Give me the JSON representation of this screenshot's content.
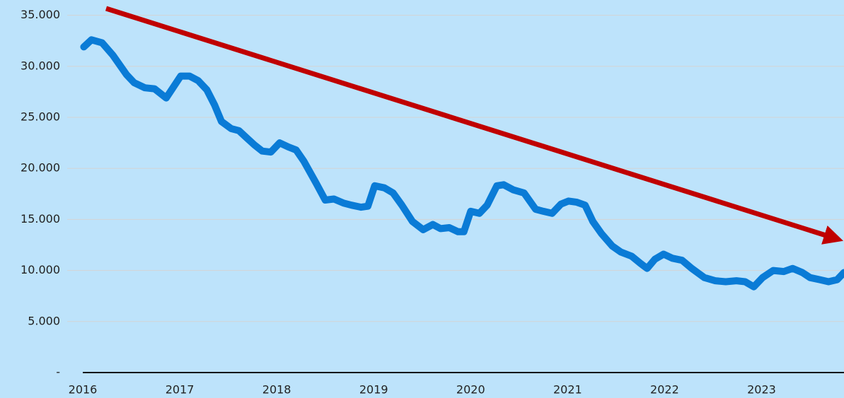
{
  "chart_data": {
    "type": "line",
    "x": [
      2016.01,
      2016.09,
      2016.2,
      2016.31,
      2016.45,
      2016.53,
      2016.64,
      2016.74,
      2016.86,
      2017.01,
      2017.1,
      2017.19,
      2017.28,
      2017.36,
      2017.43,
      2017.53,
      2017.61,
      2017.69,
      2017.77,
      2017.85,
      2017.94,
      2018.03,
      2018.12,
      2018.2,
      2018.28,
      2018.41,
      2018.5,
      2018.59,
      2018.69,
      2018.77,
      2018.87,
      2018.94,
      2019.01,
      2019.11,
      2019.2,
      2019.29,
      2019.4,
      2019.51,
      2019.61,
      2019.69,
      2019.78,
      2019.87,
      2019.93,
      2020.0,
      2020.09,
      2020.17,
      2020.27,
      2020.34,
      2020.44,
      2020.55,
      2020.67,
      2020.75,
      2020.84,
      2020.93,
      2021.01,
      2021.09,
      2021.18,
      2021.26,
      2021.35,
      2021.46,
      2021.55,
      2021.66,
      2021.75,
      2021.82,
      2021.9,
      2021.99,
      2022.08,
      2022.18,
      2022.28,
      2022.41,
      2022.52,
      2022.63,
      2022.74,
      2022.83,
      2022.92,
      2023.01,
      2023.12,
      2023.23,
      2023.32,
      2023.42,
      2023.5,
      2023.6,
      2023.69,
      2023.78,
      2023.85
    ],
    "series": [
      {
        "color": "#0a7bd6",
        "values": [
          31900,
          32600,
          32300,
          31100,
          29200,
          28400,
          27900,
          27800,
          26900,
          29050,
          29050,
          28600,
          27700,
          26200,
          24600,
          23900,
          23700,
          23000,
          22300,
          21700,
          21600,
          22500,
          22100,
          21800,
          20700,
          18500,
          16900,
          17000,
          16600,
          16400,
          16200,
          16300,
          18300,
          18100,
          17600,
          16400,
          14800,
          14000,
          14500,
          14100,
          14200,
          13800,
          13800,
          15800,
          15600,
          16400,
          18300,
          18400,
          17900,
          17600,
          16000,
          15800,
          15600,
          16500,
          16800,
          16700,
          16400,
          14800,
          13600,
          12400,
          11800,
          11400,
          10700,
          10200,
          11100,
          11600,
          11200,
          11000,
          10200,
          9300,
          9000,
          8900,
          9000,
          8900,
          8400,
          9300,
          10000,
          9900,
          10200,
          9800,
          9300,
          9100,
          8900,
          9100,
          9800
        ]
      }
    ],
    "xlim": [
      2016,
      2023.85
    ],
    "xticks": [
      2016,
      2017,
      2018,
      2019,
      2020,
      2021,
      2022,
      2023
    ],
    "ylim": [
      0,
      36500
    ],
    "yticks": [
      {
        "value": 0,
        "label": "-"
      },
      {
        "value": 5000,
        "label": "5.000"
      },
      {
        "value": 10000,
        "label": "10.000"
      },
      {
        "value": 15000,
        "label": "15.000"
      },
      {
        "value": 20000,
        "label": "20.000"
      },
      {
        "value": 25000,
        "label": "25.000"
      },
      {
        "value": 30000,
        "label": "30.000"
      },
      {
        "value": 35000,
        "label": "35.000"
      }
    ],
    "grid": true
  }
}
